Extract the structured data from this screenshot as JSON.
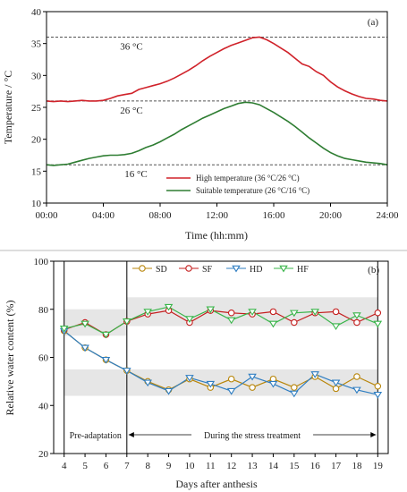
{
  "panel_a": {
    "chart_data": {
      "type": "line",
      "panel_label": "(a)",
      "xlabel": "Time (hh:mm)",
      "ylabel": "Temperature / °C",
      "ylim": [
        10,
        40
      ],
      "yticks": [
        10,
        15,
        20,
        25,
        30,
        35,
        40
      ],
      "xlim": [
        0,
        24
      ],
      "xticks": [
        0,
        4,
        8,
        12,
        16,
        20,
        24
      ],
      "xtick_labels": [
        "00:00",
        "04:00",
        "08:00",
        "12:00",
        "16:00",
        "20:00",
        "24:00"
      ],
      "reference_lines": [
        {
          "y": 36,
          "label": "36 °C"
        },
        {
          "y": 26,
          "label": "26 °C"
        },
        {
          "y": 16,
          "label": "16 °C"
        }
      ],
      "legend_position": "bottom-right",
      "series": [
        {
          "name": "High temperature (36 °C/26 °C)",
          "color": "#d0222a",
          "x": [
            0,
            0.5,
            1,
            1.5,
            2,
            2.5,
            3,
            3.5,
            4,
            4.5,
            5,
            5.5,
            6,
            6.5,
            7,
            7.5,
            8,
            8.5,
            9,
            9.5,
            10,
            10.5,
            11,
            11.5,
            12,
            12.5,
            13,
            13.5,
            14,
            14.5,
            15,
            15.5,
            16,
            16.5,
            17,
            17.5,
            18,
            18.5,
            19,
            19.5,
            20,
            20.5,
            21,
            21.5,
            22,
            22.5,
            23,
            23.5,
            24
          ],
          "y": [
            26.0,
            25.9,
            26.0,
            25.9,
            26.0,
            26.1,
            26.0,
            26.0,
            26.1,
            26.4,
            26.8,
            27.0,
            27.2,
            27.8,
            28.1,
            28.4,
            28.7,
            29.1,
            29.6,
            30.2,
            30.8,
            31.5,
            32.3,
            33.0,
            33.6,
            34.2,
            34.7,
            35.1,
            35.5,
            35.9,
            36.0,
            35.6,
            35.0,
            34.3,
            33.6,
            32.7,
            31.8,
            31.4,
            30.6,
            30.0,
            29.0,
            28.2,
            27.6,
            27.1,
            26.7,
            26.4,
            26.3,
            26.1,
            26.0
          ]
        },
        {
          "name": "Suitable temperature (26 °C/16 °C)",
          "color": "#2e7d32",
          "x": [
            0,
            0.5,
            1,
            1.5,
            2,
            2.5,
            3,
            3.5,
            4,
            4.5,
            5,
            5.5,
            6,
            6.5,
            7,
            7.5,
            8,
            8.5,
            9,
            9.5,
            10,
            10.5,
            11,
            11.5,
            12,
            12.5,
            13,
            13.5,
            14,
            14.5,
            15,
            15.5,
            16,
            16.5,
            17,
            17.5,
            18,
            18.5,
            19,
            19.5,
            20,
            20.5,
            21,
            21.5,
            22,
            22.5,
            23,
            23.5,
            24
          ],
          "y": [
            16.0,
            15.9,
            16.0,
            16.1,
            16.4,
            16.7,
            17.0,
            17.2,
            17.4,
            17.5,
            17.5,
            17.6,
            17.8,
            18.2,
            18.7,
            19.1,
            19.6,
            20.2,
            20.8,
            21.5,
            22.1,
            22.7,
            23.3,
            23.8,
            24.3,
            24.8,
            25.2,
            25.6,
            25.8,
            25.7,
            25.4,
            24.8,
            24.2,
            23.5,
            22.8,
            22.0,
            21.1,
            20.2,
            19.4,
            18.6,
            17.9,
            17.4,
            17.0,
            16.8,
            16.6,
            16.4,
            16.3,
            16.2,
            16.0
          ]
        }
      ]
    }
  },
  "panel_b": {
    "chart_data": {
      "type": "line",
      "panel_label": "(b)",
      "xlabel": "Days after anthesis",
      "ylabel": "Relative water content (%)",
      "ylim": [
        20,
        100
      ],
      "yticks": [
        20,
        40,
        60,
        80,
        100
      ],
      "xlim": [
        3.5,
        19.5
      ],
      "categories": [
        4,
        5,
        6,
        7,
        8,
        9,
        10,
        11,
        12,
        13,
        14,
        15,
        16,
        17,
        18,
        19
      ],
      "phase_divider_day": 7,
      "phases": [
        {
          "label": "Pre-adaptation",
          "from": 4,
          "to": 7
        },
        {
          "label": "During the stress treatment",
          "from": 7,
          "to": 19
        }
      ],
      "shaded_bands": [
        {
          "from_day": 4,
          "to_day": 7,
          "y_range": [
            69,
            80
          ]
        },
        {
          "from_day": 7,
          "to_day": 19,
          "y_range": [
            73,
            85
          ]
        },
        {
          "from_day": 4,
          "to_day": 19,
          "y_range": [
            44,
            55
          ]
        }
      ],
      "legend_position": "top",
      "series": [
        {
          "name": "SD",
          "color": "#b8860b",
          "marker": "circle",
          "values": [
            71,
            64,
            59,
            54.5,
            50,
            46.5,
            51,
            47.5,
            51,
            47.5,
            51,
            47.5,
            52,
            47,
            52,
            48
          ]
        },
        {
          "name": "SF",
          "color": "#c41e1e",
          "marker": "circle",
          "values": [
            71.5,
            74.5,
            69.5,
            75,
            78,
            79.5,
            74.5,
            79.5,
            78.5,
            78,
            79,
            74.5,
            78.5,
            79,
            74.5,
            78.5
          ]
        },
        {
          "name": "HD",
          "color": "#2f7ec2",
          "marker": "triangle-down",
          "values": [
            71,
            64,
            59,
            54.5,
            49.5,
            46,
            51.5,
            49,
            46,
            52,
            49,
            45,
            53,
            49.5,
            46.5,
            44.5
          ]
        },
        {
          "name": "HF",
          "color": "#39b54a",
          "marker": "triangle-down",
          "values": [
            72,
            74,
            69.5,
            75,
            79,
            81,
            76,
            80,
            75.5,
            79,
            74,
            78.5,
            79,
            73,
            77.5,
            74
          ]
        }
      ]
    }
  }
}
